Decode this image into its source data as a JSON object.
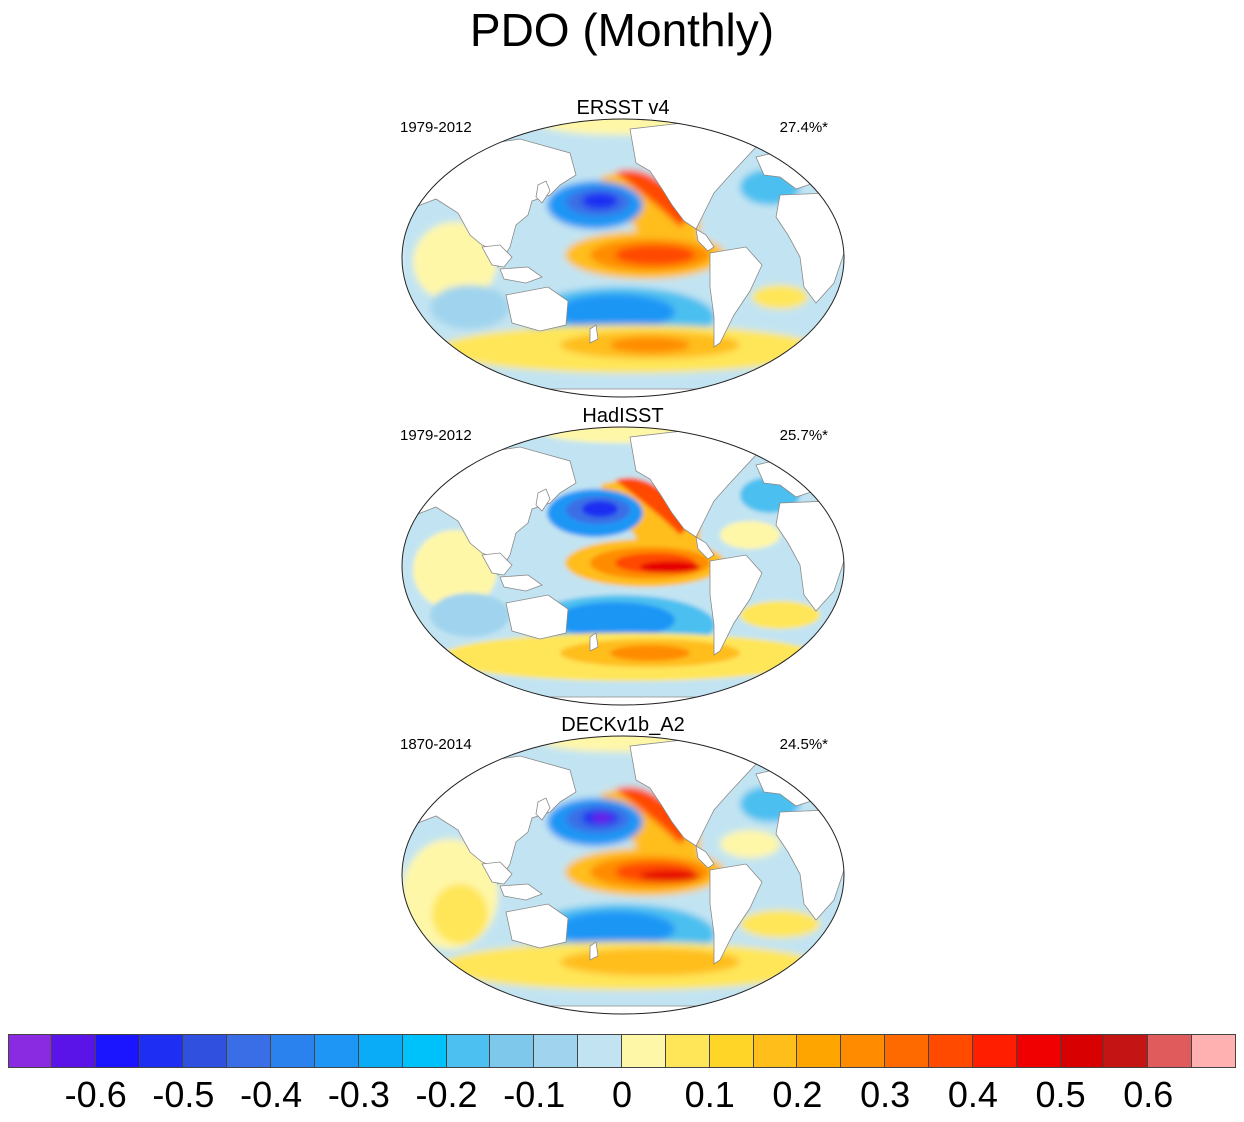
{
  "figure": {
    "title": "PDO (Monthly)"
  },
  "panels": [
    {
      "name": "ERSST v4",
      "period": "1979-2012",
      "pct": "27.4%*"
    },
    {
      "name": "HadISST",
      "period": "1979-2012",
      "pct": "25.7%*"
    },
    {
      "name": "DECKv1b_A2",
      "period": "1870-2014",
      "pct": "24.5%*"
    }
  ],
  "colorbar": {
    "ticks": [
      "-0.6",
      "-0.5",
      "-0.4",
      "-0.3",
      "-0.2",
      "-0.1",
      "0",
      "0.1",
      "0.2",
      "0.3",
      "0.4",
      "0.5",
      "0.6"
    ],
    "colors": [
      "#8a2be2",
      "#5a14e8",
      "#1a14ff",
      "#1e2ef2",
      "#3050e0",
      "#3a6ee6",
      "#2a82ee",
      "#1e96f5",
      "#0aacf8",
      "#00c2fb",
      "#4cc0f0",
      "#7ec8ec",
      "#a0d4ee",
      "#c2e4f2",
      "#fff7a8",
      "#ffe658",
      "#ffd528",
      "#ffbe1a",
      "#ffa500",
      "#ff8c00",
      "#ff6a00",
      "#ff4a00",
      "#ff1e00",
      "#f00000",
      "#d80000",
      "#c41414",
      "#e05c5c",
      "#ffb0b0"
    ]
  }
}
